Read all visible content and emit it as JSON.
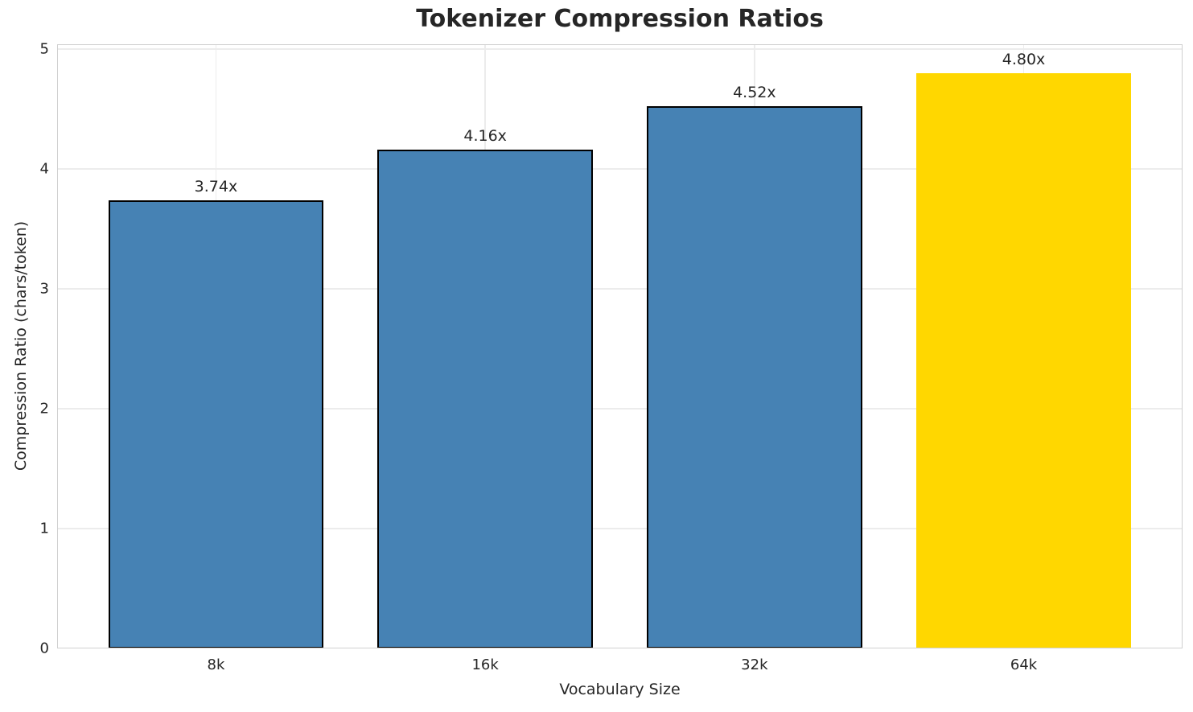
{
  "chart_data": {
    "type": "bar",
    "title": "Tokenizer Compression Ratios",
    "xlabel": "Vocabulary Size",
    "ylabel": "Compression Ratio (chars/token)",
    "categories": [
      "8k",
      "16k",
      "32k",
      "64k"
    ],
    "values": [
      3.74,
      4.16,
      4.52,
      4.8
    ],
    "bar_labels": [
      "3.74x",
      "4.16x",
      "4.52x",
      "4.80x"
    ],
    "bar_colors": [
      "#4682B4",
      "#4682B4",
      "#4682B4",
      "#FFD700"
    ],
    "bar_edge_colors": [
      "#000000",
      "#000000",
      "#000000",
      "none"
    ],
    "highlight_color": "#FFD700",
    "base_color": "#4682B4",
    "yticks": [
      0,
      1,
      2,
      3,
      4,
      5
    ],
    "ylim": [
      0,
      5.04
    ],
    "grid": true,
    "grid_color": "#ececec",
    "spine_color": "#d0d0d0",
    "text_color": "#262626",
    "background_color": "#ffffff",
    "legend": false
  }
}
